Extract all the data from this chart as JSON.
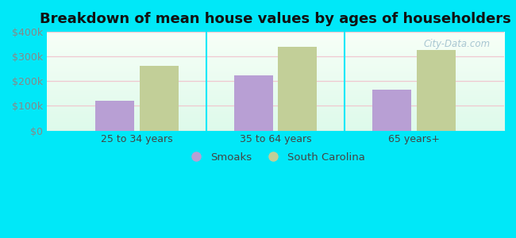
{
  "title": "Breakdown of mean house values by ages of householders",
  "categories": [
    "25 to 34 years",
    "35 to 64 years",
    "65 years+"
  ],
  "smoaks_values": [
    120000,
    225000,
    165000
  ],
  "sc_values": [
    262000,
    340000,
    325000
  ],
  "ylim": [
    0,
    400000
  ],
  "yticks": [
    0,
    100000,
    200000,
    300000,
    400000
  ],
  "ytick_labels": [
    "$0",
    "$100k",
    "$200k",
    "$300k",
    "$400k"
  ],
  "smoaks_color": "#b89fd4",
  "sc_color": "#c2cf98",
  "background_outer": "#00e8f8",
  "title_fontsize": 13,
  "legend_labels": [
    "Smoaks",
    "South Carolina"
  ],
  "bar_width": 0.28,
  "watermark": "City-Data.com",
  "grid_color": "#f0c8d0",
  "tick_color": "#888888",
  "label_color": "#444444"
}
